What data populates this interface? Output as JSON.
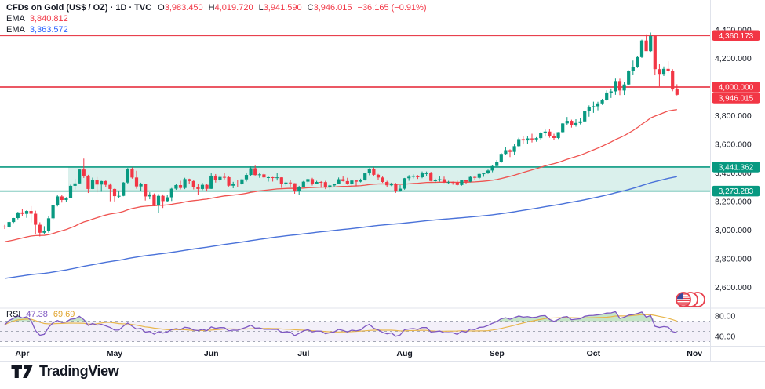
{
  "header": {
    "symbol_title": "CFDs on Gold (US$ / OZ) · 1D · TVC",
    "ohlc": {
      "o_label": "O",
      "o": "3,983.450",
      "h_label": "H",
      "h": "4,019.720",
      "l_label": "L",
      "l": "3,941.590",
      "c_label": "C",
      "c": "3,946.015",
      "change": "−36.165 (−0.91%)"
    },
    "ema_fast": {
      "label": "EMA",
      "value": "3,840.812"
    },
    "ema_slow": {
      "label": "EMA",
      "value": "3,363.572"
    }
  },
  "footer": {
    "logo_text": "TradingView"
  },
  "colors": {
    "up": "#089981",
    "down": "#f23645",
    "level_red": "#e8414e",
    "zone_line": "#089981",
    "zone_fill": "rgba(8,153,129,0.15)",
    "ema_fast": "#ef5350",
    "ema_slow": "#4a72d9",
    "rsi_line": "#7e57c2",
    "rsi_ma_line": "#e8b64c",
    "rsi_band_fill": "rgba(126,87,194,0.09)",
    "rsi_guide": "#a5a8b6",
    "rsi_overbought_fill": "rgba(76,175,80,0.32)",
    "axis_text": "#131722",
    "separator": "#e0e3eb",
    "badge_text": "#ffffff",
    "badge_red": "#f23645",
    "badge_teal": "#089981"
  },
  "chart_data": {
    "type": "candlestick",
    "title": "CFDs on Gold (US$ / OZ) · 1D · TVC",
    "y_axis": {
      "min": 2600,
      "max": 4400,
      "grid": false,
      "ticks": [
        {
          "label": "4,400.000",
          "value": 4400
        },
        {
          "label": "4,200.000",
          "value": 4200
        },
        {
          "label": "4,000.000",
          "value": 4000
        },
        {
          "label": "3,800.000",
          "value": 3800
        },
        {
          "label": "3,600.000",
          "value": 3600
        },
        {
          "label": "3,400.000",
          "value": 3400
        },
        {
          "label": "3,200.000",
          "value": 3200
        },
        {
          "label": "3,000.000",
          "value": 3000
        },
        {
          "label": "2,800.000",
          "value": 2800
        },
        {
          "label": "2,600.000",
          "value": 2600
        }
      ],
      "badges": [
        {
          "label": "4,360.173",
          "value": 4360.173,
          "bg": "#f23645"
        },
        {
          "label": "4,000.000",
          "value": 4000.0,
          "bg": "#f23645"
        },
        {
          "label": "3,946.015",
          "value": 3946.015,
          "bg": "#f23645"
        },
        {
          "label": "3,441.362",
          "value": 3441.362,
          "bg": "#089981"
        },
        {
          "label": "3,273.283",
          "value": 3273.283,
          "bg": "#089981"
        }
      ]
    },
    "x_axis": {
      "months": [
        {
          "label": "Apr",
          "index": 4
        },
        {
          "label": "May",
          "index": 25
        },
        {
          "label": "Jun",
          "index": 47
        },
        {
          "label": "Jul",
          "index": 68
        },
        {
          "label": "Aug",
          "index": 91
        },
        {
          "label": "Sep",
          "index": 112
        },
        {
          "label": "Oct",
          "index": 134
        },
        {
          "label": "Nov",
          "index": 157
        }
      ]
    },
    "levels": {
      "resistance_upper": 4360.173,
      "resistance_lower": 4000.0,
      "zone_top": 3441.362,
      "zone_bottom": 3273.283,
      "zone_start_index": 15,
      "current_price": 3946.015
    },
    "overlays": [
      {
        "name": "EMA",
        "key": "ema_fast",
        "alpha": 0.0392,
        "seed": 2915,
        "displayed_value": "3,840.812"
      },
      {
        "name": "EMA",
        "key": "ema_slow",
        "alpha": 0.00995,
        "seed": 2660,
        "displayed_value": "3,363.572"
      }
    ],
    "rsi": {
      "label": "RSI",
      "value": "47.38",
      "ma_value": "69.69",
      "period": 14,
      "ma_period": 14,
      "guides": [
        70,
        50,
        30
      ],
      "overbought": 70,
      "seed_avg_gain": 6.3,
      "seed_avg_loss": 3.7,
      "ticks": [
        {
          "label": "80.00",
          "value": 80
        },
        {
          "label": "40.00",
          "value": 40
        }
      ]
    },
    "candles": [
      [
        3025,
        3037,
        3008,
        3020
      ],
      [
        3020,
        3061,
        3016,
        3057
      ],
      [
        3057,
        3086,
        3050,
        3085
      ],
      [
        3085,
        3128,
        3076,
        3124
      ],
      [
        3124,
        3149,
        3100,
        3114
      ],
      [
        3114,
        3140,
        3086,
        3134
      ],
      [
        3134,
        3168,
        3054,
        3115
      ],
      [
        3115,
        3136,
        2971,
        3038
      ],
      [
        3038,
        3055,
        2956,
        2982
      ],
      [
        2982,
        3028,
        2975,
        2992
      ],
      [
        2992,
        3100,
        2982,
        3083
      ],
      [
        3083,
        3176,
        3072,
        3175
      ],
      [
        3175,
        3245,
        3166,
        3236
      ],
      [
        3236,
        3246,
        3193,
        3211
      ],
      [
        3211,
        3231,
        3195,
        3227
      ],
      [
        3227,
        3318,
        3224,
        3310
      ],
      [
        3310,
        3358,
        3284,
        3327
      ],
      [
        3327,
        3430,
        3324,
        3424
      ],
      [
        3424,
        3500,
        3365,
        3381
      ],
      [
        3381,
        3387,
        3260,
        3288
      ],
      [
        3288,
        3367,
        3287,
        3349
      ],
      [
        3349,
        3371,
        3265,
        3319
      ],
      [
        3319,
        3345,
        3268,
        3343
      ],
      [
        3343,
        3347,
        3300,
        3317
      ],
      [
        3317,
        3327,
        3202,
        3288
      ],
      [
        3288,
        3291,
        3201,
        3238
      ],
      [
        3238,
        3270,
        3222,
        3240
      ],
      [
        3240,
        3337,
        3237,
        3333
      ],
      [
        3333,
        3435,
        3326,
        3430
      ],
      [
        3430,
        3438,
        3360,
        3368
      ],
      [
        3368,
        3415,
        3290,
        3306
      ],
      [
        3306,
        3332,
        3275,
        3325
      ],
      [
        3325,
        3326,
        3207,
        3236
      ],
      [
        3236,
        3265,
        3216,
        3250
      ],
      [
        3250,
        3257,
        3168,
        3178
      ],
      [
        3178,
        3252,
        3120,
        3240
      ],
      [
        3240,
        3250,
        3155,
        3203
      ],
      [
        3203,
        3248,
        3198,
        3230
      ],
      [
        3230,
        3295,
        3204,
        3290
      ],
      [
        3290,
        3325,
        3282,
        3315
      ],
      [
        3315,
        3345,
        3285,
        3295
      ],
      [
        3295,
        3366,
        3287,
        3357
      ],
      [
        3357,
        3360,
        3322,
        3343
      ],
      [
        3343,
        3350,
        3285,
        3301
      ],
      [
        3301,
        3325,
        3245,
        3288
      ],
      [
        3288,
        3330,
        3280,
        3317
      ],
      [
        3317,
        3322,
        3270,
        3289
      ],
      [
        3289,
        3397,
        3288,
        3381
      ],
      [
        3381,
        3392,
        3333,
        3353
      ],
      [
        3353,
        3384,
        3338,
        3372
      ],
      [
        3372,
        3403,
        3355,
        3370
      ],
      [
        3370,
        3375,
        3305,
        3311
      ],
      [
        3311,
        3338,
        3293,
        3326
      ],
      [
        3326,
        3348,
        3302,
        3323
      ],
      [
        3323,
        3360,
        3315,
        3355
      ],
      [
        3355,
        3398,
        3340,
        3386
      ],
      [
        3386,
        3446,
        3380,
        3433
      ],
      [
        3433,
        3451,
        3382,
        3385
      ],
      [
        3385,
        3403,
        3366,
        3390
      ],
      [
        3390,
        3396,
        3363,
        3369
      ],
      [
        3369,
        3374,
        3340,
        3370
      ],
      [
        3370,
        3372,
        3340,
        3368
      ],
      [
        3368,
        3398,
        3347,
        3369
      ],
      [
        3369,
        3370,
        3295,
        3324
      ],
      [
        3324,
        3340,
        3310,
        3333
      ],
      [
        3333,
        3350,
        3305,
        3328
      ],
      [
        3328,
        3329,
        3255,
        3274
      ],
      [
        3274,
        3310,
        3246,
        3303
      ],
      [
        3303,
        3344,
        3301,
        3339
      ],
      [
        3339,
        3360,
        3328,
        3357
      ],
      [
        3357,
        3366,
        3312,
        3326
      ],
      [
        3326,
        3345,
        3323,
        3337
      ],
      [
        3337,
        3343,
        3296,
        3336
      ],
      [
        3336,
        3345,
        3287,
        3301
      ],
      [
        3301,
        3322,
        3283,
        3313
      ],
      [
        3313,
        3324,
        3305,
        3323
      ],
      [
        3323,
        3368,
        3322,
        3356
      ],
      [
        3356,
        3375,
        3340,
        3343
      ],
      [
        3343,
        3366,
        3318,
        3324
      ],
      [
        3324,
        3352,
        3310,
        3347
      ],
      [
        3347,
        3348,
        3309,
        3339
      ],
      [
        3339,
        3360,
        3334,
        3350
      ],
      [
        3350,
        3400,
        3347,
        3397
      ],
      [
        3397,
        3433,
        3384,
        3430
      ],
      [
        3430,
        3439,
        3381,
        3387
      ],
      [
        3387,
        3393,
        3350,
        3368
      ],
      [
        3368,
        3375,
        3331,
        3337
      ],
      [
        3337,
        3345,
        3301,
        3314
      ],
      [
        3314,
        3332,
        3308,
        3326
      ],
      [
        3326,
        3330,
        3261,
        3275
      ],
      [
        3275,
        3315,
        3268,
        3290
      ],
      [
        3290,
        3365,
        3283,
        3363
      ],
      [
        3363,
        3385,
        3345,
        3373
      ],
      [
        3373,
        3390,
        3362,
        3381
      ],
      [
        3381,
        3385,
        3358,
        3370
      ],
      [
        3370,
        3410,
        3363,
        3397
      ],
      [
        3397,
        3410,
        3380,
        3398
      ],
      [
        3398,
        3408,
        3341,
        3344
      ],
      [
        3344,
        3360,
        3331,
        3348
      ],
      [
        3348,
        3375,
        3340,
        3356
      ],
      [
        3356,
        3374,
        3330,
        3335
      ],
      [
        3335,
        3345,
        3321,
        3336
      ],
      [
        3336,
        3340,
        3318,
        3334
      ],
      [
        3334,
        3346,
        3312,
        3316
      ],
      [
        3316,
        3350,
        3311,
        3348
      ],
      [
        3348,
        3352,
        3325,
        3339
      ],
      [
        3339,
        3378,
        3335,
        3372
      ],
      [
        3372,
        3375,
        3348,
        3366
      ],
      [
        3366,
        3395,
        3358,
        3393
      ],
      [
        3393,
        3400,
        3373,
        3397
      ],
      [
        3397,
        3423,
        3393,
        3417
      ],
      [
        3417,
        3454,
        3405,
        3448
      ],
      [
        3448,
        3490,
        3440,
        3476
      ],
      [
        3476,
        3540,
        3470,
        3533
      ],
      [
        3533,
        3578,
        3526,
        3559
      ],
      [
        3559,
        3565,
        3511,
        3547
      ],
      [
        3547,
        3600,
        3525,
        3587
      ],
      [
        3587,
        3646,
        3582,
        3636
      ],
      [
        3636,
        3659,
        3602,
        3627
      ],
      [
        3627,
        3657,
        3605,
        3641
      ],
      [
        3641,
        3674,
        3613,
        3634
      ],
      [
        3634,
        3650,
        3618,
        3643
      ],
      [
        3643,
        3685,
        3630,
        3679
      ],
      [
        3679,
        3703,
        3654,
        3689
      ],
      [
        3689,
        3707,
        3646,
        3660
      ],
      [
        3660,
        3674,
        3631,
        3644
      ],
      [
        3644,
        3686,
        3637,
        3685
      ],
      [
        3685,
        3748,
        3677,
        3746
      ],
      [
        3746,
        3791,
        3734,
        3764
      ],
      [
        3764,
        3772,
        3717,
        3736
      ],
      [
        3736,
        3775,
        3723,
        3749
      ],
      [
        3749,
        3783,
        3739,
        3760
      ],
      [
        3760,
        3833,
        3756,
        3832
      ],
      [
        3832,
        3872,
        3793,
        3858
      ],
      [
        3858,
        3898,
        3820,
        3866
      ],
      [
        3866,
        3897,
        3838,
        3886
      ],
      [
        3886,
        3918,
        3875,
        3910
      ],
      [
        3910,
        3977,
        3905,
        3962
      ],
      [
        3962,
        3990,
        3924,
        3970
      ],
      [
        3970,
        4059,
        3946,
        4042
      ],
      [
        4042,
        4058,
        3944,
        3976
      ],
      [
        3976,
        4033,
        3945,
        4018
      ],
      [
        4018,
        4117,
        4012,
        4110
      ],
      [
        4110,
        4185,
        4085,
        4142
      ],
      [
        4142,
        4218,
        4133,
        4209
      ],
      [
        4209,
        4331,
        4203,
        4325
      ],
      [
        4325,
        4368,
        4258,
        4251
      ],
      [
        4251,
        4381,
        4246,
        4356
      ],
      [
        4356,
        4364,
        4082,
        4125
      ],
      [
        4125,
        4161,
        4004,
        4092
      ],
      [
        4092,
        4144,
        4077,
        4127
      ],
      [
        4127,
        4180,
        4100,
        4113
      ],
      [
        4113,
        4125,
        3971,
        3983
      ],
      [
        3983.45,
        4019.72,
        3941.59,
        3946.015
      ]
    ]
  }
}
